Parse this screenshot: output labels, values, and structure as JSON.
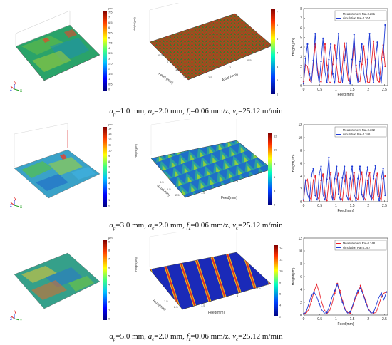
{
  "rows": [
    {
      "caption": "aₚ=1.0 mm, aₑ=2.0 mm, fᵣ=0.06 mm/z, vₑ=25.12 m/min",
      "caption_parts": {
        "ap": "1.0",
        "ae": "2.0",
        "fz": "0.06",
        "vc": "25.12"
      },
      "colorbar_measured": {
        "unit": "μm",
        "ticks": [
          "7.5",
          "7",
          "6.5",
          "6",
          "5.5",
          "5",
          "4.5",
          "4",
          "3.5",
          "3",
          "2.5",
          "2",
          "1.5",
          "1",
          "0.5",
          "0"
        ]
      },
      "colorbar_sim": {
        "ticks": [
          "7",
          "6",
          "5",
          "4",
          "3",
          "2",
          "1"
        ]
      },
      "sim_axes": {
        "z": "Height(μm)",
        "x": "Feed (mm)",
        "y": "Axial (mm)"
      },
      "profile_axes": {
        "ylabel": "Height(μm)",
        "xlabel": "Feed(mm)"
      }
    },
    {
      "caption": "aₚ=3.0 mm, aₑ=2.0 mm, fᵣ=0.06 mm/z, vₑ=25.12 m/min",
      "caption_parts": {
        "ap": "3.0",
        "ae": "2.0",
        "fz": "0.06",
        "vc": "25.12"
      },
      "colorbar_measured": {
        "unit": "μm",
        "ticks": [
          "14",
          "13",
          "12",
          "11",
          "10",
          "9",
          "8",
          "7",
          "6",
          "5",
          "4",
          "3",
          "2",
          "1",
          "0"
        ]
      },
      "colorbar_sim": {
        "ticks": [
          "12",
          "10",
          "8",
          "6",
          "4",
          "2"
        ]
      },
      "sim_axes": {
        "z": "Height(μm)",
        "x": "Feed(mm)",
        "y": "Axial(mm)"
      },
      "profile_axes": {
        "ylabel": "Height(μm)",
        "xlabel": "Feed(mm)"
      }
    },
    {
      "caption": "aₚ=5.0 mm, aₑ=2.0 mm, fᵣ=0.06 mm/z, vₑ=25.12 m/min",
      "caption_parts": {
        "ap": "5.0",
        "ae": "2.0",
        "fz": "0.06",
        "vc": "25.12"
      },
      "colorbar_measured": {
        "unit": "μm",
        "ticks": [
          "9",
          "8",
          "7",
          "6",
          "5",
          "4",
          "3",
          "2",
          "1",
          "0"
        ]
      },
      "colorbar_sim": {
        "ticks": [
          "14",
          "12",
          "10",
          "8",
          "6",
          "4",
          "2"
        ]
      },
      "sim_axes": {
        "z": "Height(μm)",
        "x": "Feed(mm)",
        "y": "Axial(mm)"
      },
      "profile_axes": {
        "ylabel": "Height(μm)",
        "xlabel": "Feed(mm)"
      }
    }
  ],
  "chart_data": [
    {
      "type": "line",
      "xlabel": "Feed(mm)",
      "ylabel": "Height(μm)",
      "xlim": [
        0,
        2.6
      ],
      "ylim": [
        0,
        8
      ],
      "xticks": [
        0,
        0.5,
        1,
        1.5,
        2,
        2.5
      ],
      "yticks": [
        0,
        1,
        2,
        3,
        4,
        5,
        6,
        7,
        8
      ],
      "legend": "top-right",
      "series": [
        {
          "name": "Measurement Ra=0.281",
          "color": "#e8202a",
          "x": [
            0,
            0.06,
            0.12,
            0.18,
            0.24,
            0.3,
            0.36,
            0.42,
            0.48,
            0.54,
            0.6,
            0.66,
            0.72,
            0.78,
            0.84,
            0.9,
            0.96,
            1.02,
            1.08,
            1.14,
            1.2,
            1.26,
            1.32,
            1.38,
            1.44,
            1.5,
            1.56,
            1.62,
            1.68,
            1.74,
            1.8,
            1.86,
            1.92,
            1.98,
            2.04,
            2.1,
            2.16,
            2.22,
            2.28,
            2.34,
            2.4,
            2.46,
            2.52
          ],
          "y": [
            0.4,
            2.2,
            2.0,
            0.6,
            0.3,
            2.2,
            4.3,
            2.0,
            0.5,
            0.4,
            2.3,
            4.3,
            2.1,
            0.4,
            0.3,
            2.2,
            4.2,
            2.0,
            0.4,
            0.3,
            2.1,
            4.4,
            2.2,
            0.5,
            0.4,
            2.3,
            4.3,
            2.1,
            0.5,
            0.4,
            2.2,
            4.1,
            2.0,
            0.4,
            0.3,
            2.3,
            4.6,
            2.1,
            0.5,
            0.4,
            2.4,
            4.2,
            2.0
          ]
        },
        {
          "name": "simulation Ra=0.304",
          "color": "#1f3bd6",
          "x": [
            0,
            0.06,
            0.12,
            0.18,
            0.24,
            0.3,
            0.36,
            0.42,
            0.48,
            0.54,
            0.6,
            0.66,
            0.72,
            0.78,
            0.84,
            0.9,
            0.96,
            1.02,
            1.08,
            1.14,
            1.2,
            1.26,
            1.32,
            1.38,
            1.44,
            1.5,
            1.56,
            1.62,
            1.68,
            1.74,
            1.8,
            1.86,
            1.92,
            1.98,
            2.04,
            2.1,
            2.16,
            2.22,
            2.28,
            2.34,
            2.4,
            2.46,
            2.52
          ],
          "y": [
            0.2,
            2.8,
            4.3,
            1.2,
            0.3,
            2.6,
            5.4,
            1.6,
            0.2,
            2.5,
            4.9,
            1.4,
            0.3,
            2.7,
            4.3,
            1.2,
            0.2,
            2.8,
            5.4,
            1.6,
            0.3,
            2.6,
            4.4,
            1.3,
            0.2,
            2.7,
            5.3,
            1.5,
            0.3,
            2.5,
            4.3,
            1.3,
            0.2,
            2.7,
            5.4,
            1.5,
            0.3,
            2.6,
            4.5,
            1.3,
            0.2,
            2.9,
            6.3
          ]
        }
      ]
    },
    {
      "type": "line",
      "xlabel": "Feed(mm)",
      "ylabel": "Height(μm)",
      "xlim": [
        0,
        2.6
      ],
      "ylim": [
        0,
        12
      ],
      "xticks": [
        0,
        0.5,
        1,
        1.5,
        2,
        2.5
      ],
      "yticks": [
        0,
        2,
        4,
        6,
        8,
        10,
        12
      ],
      "legend": "top-right",
      "series": [
        {
          "name": "Measurement Ra=0.302",
          "color": "#e8202a",
          "x": [
            0,
            0.06,
            0.12,
            0.18,
            0.24,
            0.3,
            0.36,
            0.42,
            0.48,
            0.54,
            0.6,
            0.66,
            0.72,
            0.78,
            0.84,
            0.9,
            0.96,
            1.02,
            1.08,
            1.14,
            1.2,
            1.26,
            1.32,
            1.38,
            1.44,
            1.5,
            1.56,
            1.62,
            1.68,
            1.74,
            1.8,
            1.86,
            1.92,
            1.98,
            2.04,
            2.1,
            2.16,
            2.22,
            2.28,
            2.34,
            2.4,
            2.46,
            2.52
          ],
          "y": [
            0.2,
            3.0,
            3.5,
            0.8,
            0.2,
            3.4,
            4.0,
            0.8,
            0.3,
            3.3,
            4.3,
            0.8,
            0.2,
            3.3,
            4.5,
            0.7,
            0.3,
            3.4,
            4.4,
            0.8,
            0.2,
            3.2,
            4.6,
            0.9,
            0.3,
            3.2,
            4.5,
            0.7,
            0.3,
            3.3,
            4.6,
            0.8,
            0.2,
            3.3,
            4.5,
            0.8,
            0.3,
            3.5,
            4.4,
            0.8,
            0.2,
            3.6,
            4.0
          ]
        },
        {
          "name": "simulation Ra=0.346",
          "color": "#1f3bd6",
          "x": [
            0,
            0.06,
            0.12,
            0.18,
            0.24,
            0.3,
            0.36,
            0.42,
            0.48,
            0.54,
            0.6,
            0.66,
            0.72,
            0.78,
            0.84,
            0.9,
            0.96,
            1.02,
            1.08,
            1.14,
            1.2,
            1.26,
            1.32,
            1.38,
            1.44,
            1.5,
            1.56,
            1.62,
            1.68,
            1.74,
            1.8,
            1.86,
            1.92,
            1.98,
            2.04,
            2.1,
            2.16,
            2.22,
            2.28,
            2.34,
            2.4,
            2.46,
            2.52
          ],
          "y": [
            0.3,
            3.5,
            1.2,
            0.2,
            4.0,
            5.2,
            1.0,
            0.2,
            4.2,
            5.5,
            1.1,
            0.2,
            3.5,
            6.9,
            1.2,
            0.3,
            3.6,
            5.5,
            1.2,
            0.2,
            3.7,
            5.5,
            1.1,
            0.2,
            3.6,
            5.5,
            1.2,
            0.2,
            3.6,
            5.5,
            1.1,
            0.2,
            3.4,
            5.4,
            1.2,
            0.2,
            3.6,
            5.6,
            1.1,
            0.2,
            3.5,
            5.2,
            1.0
          ]
        }
      ]
    },
    {
      "type": "line",
      "xlabel": "Feed(mm)",
      "ylabel": "Height(μm)",
      "xlim": [
        0,
        2.6
      ],
      "ylim": [
        0,
        12
      ],
      "xticks": [
        0,
        0.5,
        1,
        1.5,
        2,
        2.5
      ],
      "yticks": [
        0,
        2,
        4,
        6,
        8,
        10,
        12
      ],
      "legend": "top-right",
      "series": [
        {
          "name": "Measurement Ra=0.348",
          "color": "#e8202a",
          "x": [
            0,
            0.08,
            0.16,
            0.24,
            0.32,
            0.4,
            0.48,
            0.56,
            0.64,
            0.72,
            0.8,
            0.88,
            0.96,
            1.04,
            1.12,
            1.2,
            1.28,
            1.36,
            1.44,
            1.52,
            1.6,
            1.68,
            1.76,
            1.84,
            1.92,
            2.0,
            2.08,
            2.16,
            2.24,
            2.32,
            2.4,
            2.48,
            2.56
          ],
          "y": [
            0.2,
            0.3,
            0.9,
            2.2,
            3.6,
            4.8,
            3.6,
            2.0,
            0.8,
            0.3,
            0.6,
            1.8,
            3.4,
            4.9,
            3.8,
            2.2,
            1.0,
            0.4,
            0.3,
            1.4,
            2.6,
            3.5,
            4.6,
            3.4,
            2.2,
            1.0,
            0.4,
            0.3,
            0.4,
            1.5,
            2.8,
            3.4,
            3.6
          ]
        },
        {
          "name": "simulation Ra=0.367",
          "color": "#1f3bd6",
          "x": [
            0,
            0.08,
            0.16,
            0.24,
            0.32,
            0.4,
            0.48,
            0.56,
            0.64,
            0.72,
            0.8,
            0.88,
            0.96,
            1.04,
            1.12,
            1.2,
            1.28,
            1.36,
            1.44,
            1.52,
            1.6,
            1.68,
            1.76,
            1.84,
            1.92,
            2.0,
            2.08,
            2.16,
            2.24,
            2.32,
            2.4,
            2.48,
            2.56
          ],
          "y": [
            0.2,
            0.5,
            1.8,
            3.0,
            3.6,
            2.9,
            1.8,
            0.8,
            0.3,
            0.4,
            1.4,
            2.8,
            3.8,
            4.8,
            3.4,
            2.0,
            0.8,
            0.3,
            0.5,
            1.6,
            2.9,
            3.8,
            4.2,
            3.2,
            2.0,
            0.9,
            0.3,
            0.4,
            1.5,
            2.7,
            3.4,
            2.4,
            3.6
          ]
        }
      ]
    }
  ]
}
